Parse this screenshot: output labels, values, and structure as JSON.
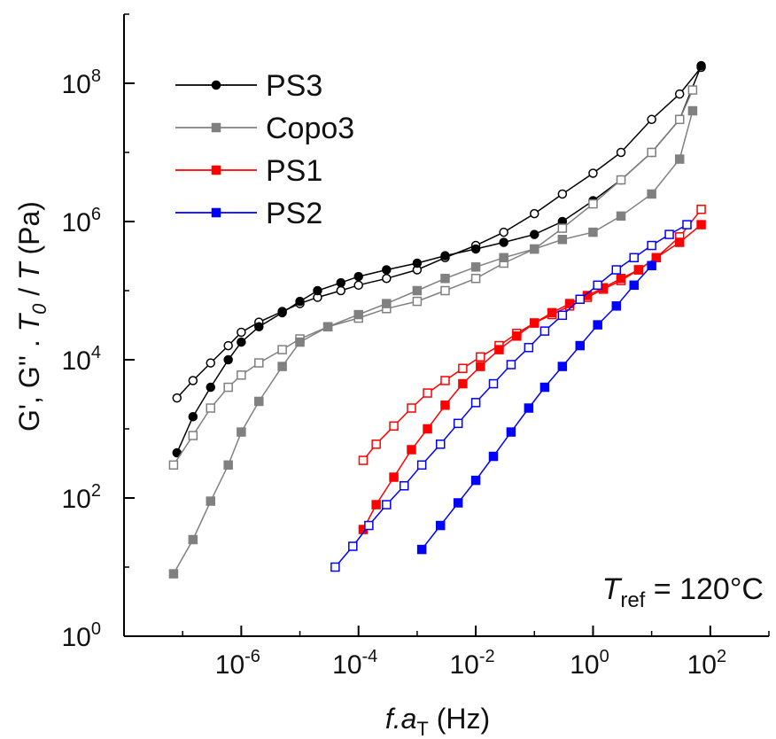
{
  "chart_data": {
    "type": "line",
    "xscale": "log",
    "yscale": "log",
    "xlim": [
      1e-08,
      1000.0
    ],
    "ylim": [
      1,
      1000000000.0
    ],
    "xlabel": {
      "base": "f.a",
      "subscript": "T",
      "unit": " (Hz)"
    },
    "ylabel": {
      "prefix": "G', G'' . ",
      "t0": "T",
      "t0_sub": "0",
      "mid": " / ",
      "t": "T",
      "unit": " (Pa)"
    },
    "x_ticks": [
      {
        "value": 1e-06,
        "base": "10",
        "exp": "-6"
      },
      {
        "value": 0.0001,
        "base": "10",
        "exp": "-4"
      },
      {
        "value": 0.01,
        "base": "10",
        "exp": "-2"
      },
      {
        "value": 1,
        "base": "10",
        "exp": "0"
      },
      {
        "value": 100,
        "base": "10",
        "exp": "2"
      }
    ],
    "y_ticks": [
      {
        "value": 1,
        "base": "10",
        "exp": "0"
      },
      {
        "value": 100,
        "base": "10",
        "exp": "2"
      },
      {
        "value": 10000.0,
        "base": "10",
        "exp": "4"
      },
      {
        "value": 1000000.0,
        "base": "10",
        "exp": "6"
      },
      {
        "value": 100000000.0,
        "base": "10",
        "exp": "8"
      }
    ],
    "legend_position": "top-left",
    "annotation": {
      "symbol": "T",
      "subscript": "ref",
      "text": " = 120°C"
    },
    "series": [
      {
        "name": "PS3",
        "color": "#000000",
        "marker": "circle",
        "loss_x": [
          8e-08,
          1.5e-07,
          3e-07,
          6e-07,
          1e-06,
          2e-06,
          5e-06,
          1e-05,
          2e-05,
          5e-05,
          0.0001,
          0.0003,
          0.001,
          0.003,
          0.01,
          0.03,
          0.1,
          0.3,
          1,
          3,
          10,
          30,
          70
        ],
        "loss_y": [
          2800.0,
          5000.0,
          9000.0,
          16000.0,
          25000.0,
          35000.0,
          50000.0,
          65000.0,
          80000.0,
          100000.0,
          120000.0,
          150000.0,
          200000.0,
          300000.0,
          450000.0,
          700000.0,
          1300000.0,
          2500000.0,
          5000000.0,
          10000000.0,
          30000000.0,
          70000000.0,
          170000000.0
        ],
        "storage_x": [
          8e-08,
          1.5e-07,
          3e-07,
          6e-07,
          1e-06,
          2e-06,
          5e-06,
          1e-05,
          2e-05,
          5e-05,
          0.0001,
          0.0003,
          0.001,
          0.003,
          0.01,
          0.03,
          0.1,
          0.3,
          1,
          3,
          10,
          30,
          70
        ],
        "storage_y": [
          450.0,
          1500.0,
          4000.0,
          10000.0,
          18000.0,
          30000.0,
          48000.0,
          70000.0,
          100000.0,
          130000.0,
          160000.0,
          200000.0,
          250000.0,
          320000.0,
          400000.0,
          500000.0,
          650000.0,
          1000000.0,
          2000000.0,
          4000000.0,
          10000000.0,
          30000000.0,
          180000000.0
        ]
      },
      {
        "name": "Copo3",
        "color": "#808080",
        "marker": "square",
        "loss_x": [
          7e-08,
          1.5e-07,
          3e-07,
          6e-07,
          1e-06,
          2e-06,
          5e-06,
          1e-05,
          3e-05,
          0.0001,
          0.0003,
          0.001,
          0.003,
          0.01,
          0.03,
          0.1,
          0.3,
          1,
          3,
          10,
          30,
          50
        ],
        "loss_y": [
          300.0,
          800.0,
          2000.0,
          4000.0,
          6000.0,
          9000.0,
          14000.0,
          20000.0,
          30000.0,
          40000.0,
          55000.0,
          70000.0,
          100000.0,
          150000.0,
          250000.0,
          400000.0,
          800000.0,
          1800000.0,
          4000000.0,
          10000000.0,
          30000000.0,
          80000000.0
        ],
        "storage_x": [
          7e-08,
          1.5e-07,
          3e-07,
          6e-07,
          1e-06,
          2e-06,
          5e-06,
          1e-05,
          3e-05,
          0.0001,
          0.0003,
          0.001,
          0.003,
          0.01,
          0.03,
          0.1,
          0.3,
          1,
          3,
          10,
          30,
          50
        ],
        "storage_y": [
          8,
          25,
          90,
          300.0,
          900.0,
          2500.0,
          8000.0,
          18000.0,
          30000.0,
          45000.0,
          65000.0,
          100000.0,
          150000.0,
          220000.0,
          300000.0,
          400000.0,
          550000.0,
          700000.0,
          1200000.0,
          2500000.0,
          8000000.0,
          40000000.0
        ]
      },
      {
        "name": "PS1",
        "color": "#ff0000",
        "marker": "square",
        "loss_x": [
          0.00012,
          0.0002,
          0.0004,
          0.0008,
          0.0015,
          0.003,
          0.006,
          0.012,
          0.025,
          0.05,
          0.1,
          0.2,
          0.4,
          0.8,
          1.5,
          3,
          6,
          12,
          30,
          70
        ],
        "loss_y": [
          350.0,
          600.0,
          1100.0,
          2000.0,
          3300.0,
          5000.0,
          7500.0,
          11000.0,
          16000.0,
          24000.0,
          34000.0,
          45000.0,
          60000.0,
          80000.0,
          105000.0,
          140000.0,
          200000.0,
          300000.0,
          600000.0,
          1500000.0
        ],
        "storage_x": [
          0.00012,
          0.0002,
          0.0004,
          0.0008,
          0.0015,
          0.003,
          0.006,
          0.012,
          0.025,
          0.05,
          0.1,
          0.2,
          0.4,
          0.8,
          1.5,
          3,
          6,
          12,
          30,
          70
        ],
        "storage_y": [
          35,
          80,
          200.0,
          500.0,
          1000.0,
          2200.0,
          4500.0,
          8000.0,
          14000.0,
          22000.0,
          34000.0,
          48000.0,
          65000.0,
          85000.0,
          110000.0,
          150000.0,
          200000.0,
          300000.0,
          500000.0,
          900000.0
        ]
      },
      {
        "name": "PS2",
        "color": "#0000ff",
        "marker": "square",
        "loss_x": [
          4e-05,
          8e-05,
          0.00015,
          0.0003,
          0.0006,
          0.0012,
          0.0025,
          0.005,
          0.01,
          0.02,
          0.04,
          0.08,
          0.15,
          0.3,
          0.6,
          1.2,
          2.5,
          5,
          10,
          20,
          40
        ],
        "loss_y": [
          10,
          20,
          40,
          80,
          150.0,
          300.0,
          600.0,
          1200.0,
          2400.0,
          4500.0,
          8500.0,
          15000.0,
          26000.0,
          44000.0,
          75000.0,
          120000.0,
          200000.0,
          300000.0,
          450000.0,
          650000.0,
          900000.0
        ],
        "storage_x": [
          0.0012,
          0.0025,
          0.005,
          0.01,
          0.02,
          0.04,
          0.08,
          0.15,
          0.3,
          0.6,
          1.2,
          2.5,
          5,
          10
        ],
        "storage_y": [
          18,
          40,
          85,
          180.0,
          400.0,
          900.0,
          2000.0,
          4000.0,
          8000.0,
          16000.0,
          32000.0,
          60000.0,
          120000.0,
          230000.0
        ]
      }
    ]
  }
}
